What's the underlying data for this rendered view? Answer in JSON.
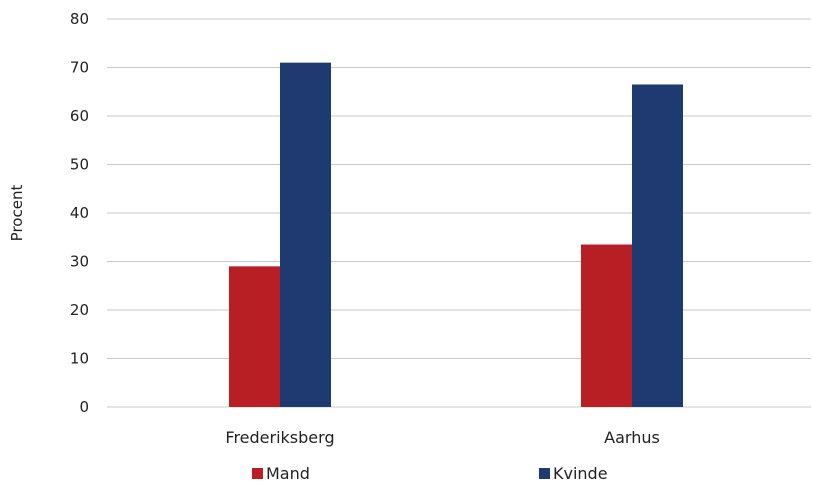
{
  "chart_data": {
    "type": "bar",
    "title": "",
    "xlabel": "",
    "ylabel": "Procent",
    "ylim": [
      0,
      80
    ],
    "yticks": [
      0,
      10,
      20,
      30,
      40,
      50,
      60,
      70,
      80
    ],
    "grid": true,
    "legend_position": "bottom",
    "categories": [
      "Frederiksberg",
      "Aarhus"
    ],
    "series": [
      {
        "name": "Mand",
        "color": "#b81f24",
        "values": [
          29,
          33.5
        ]
      },
      {
        "name": "Kvinde",
        "color": "#1e3a70",
        "values": [
          71,
          66.5
        ]
      }
    ]
  }
}
